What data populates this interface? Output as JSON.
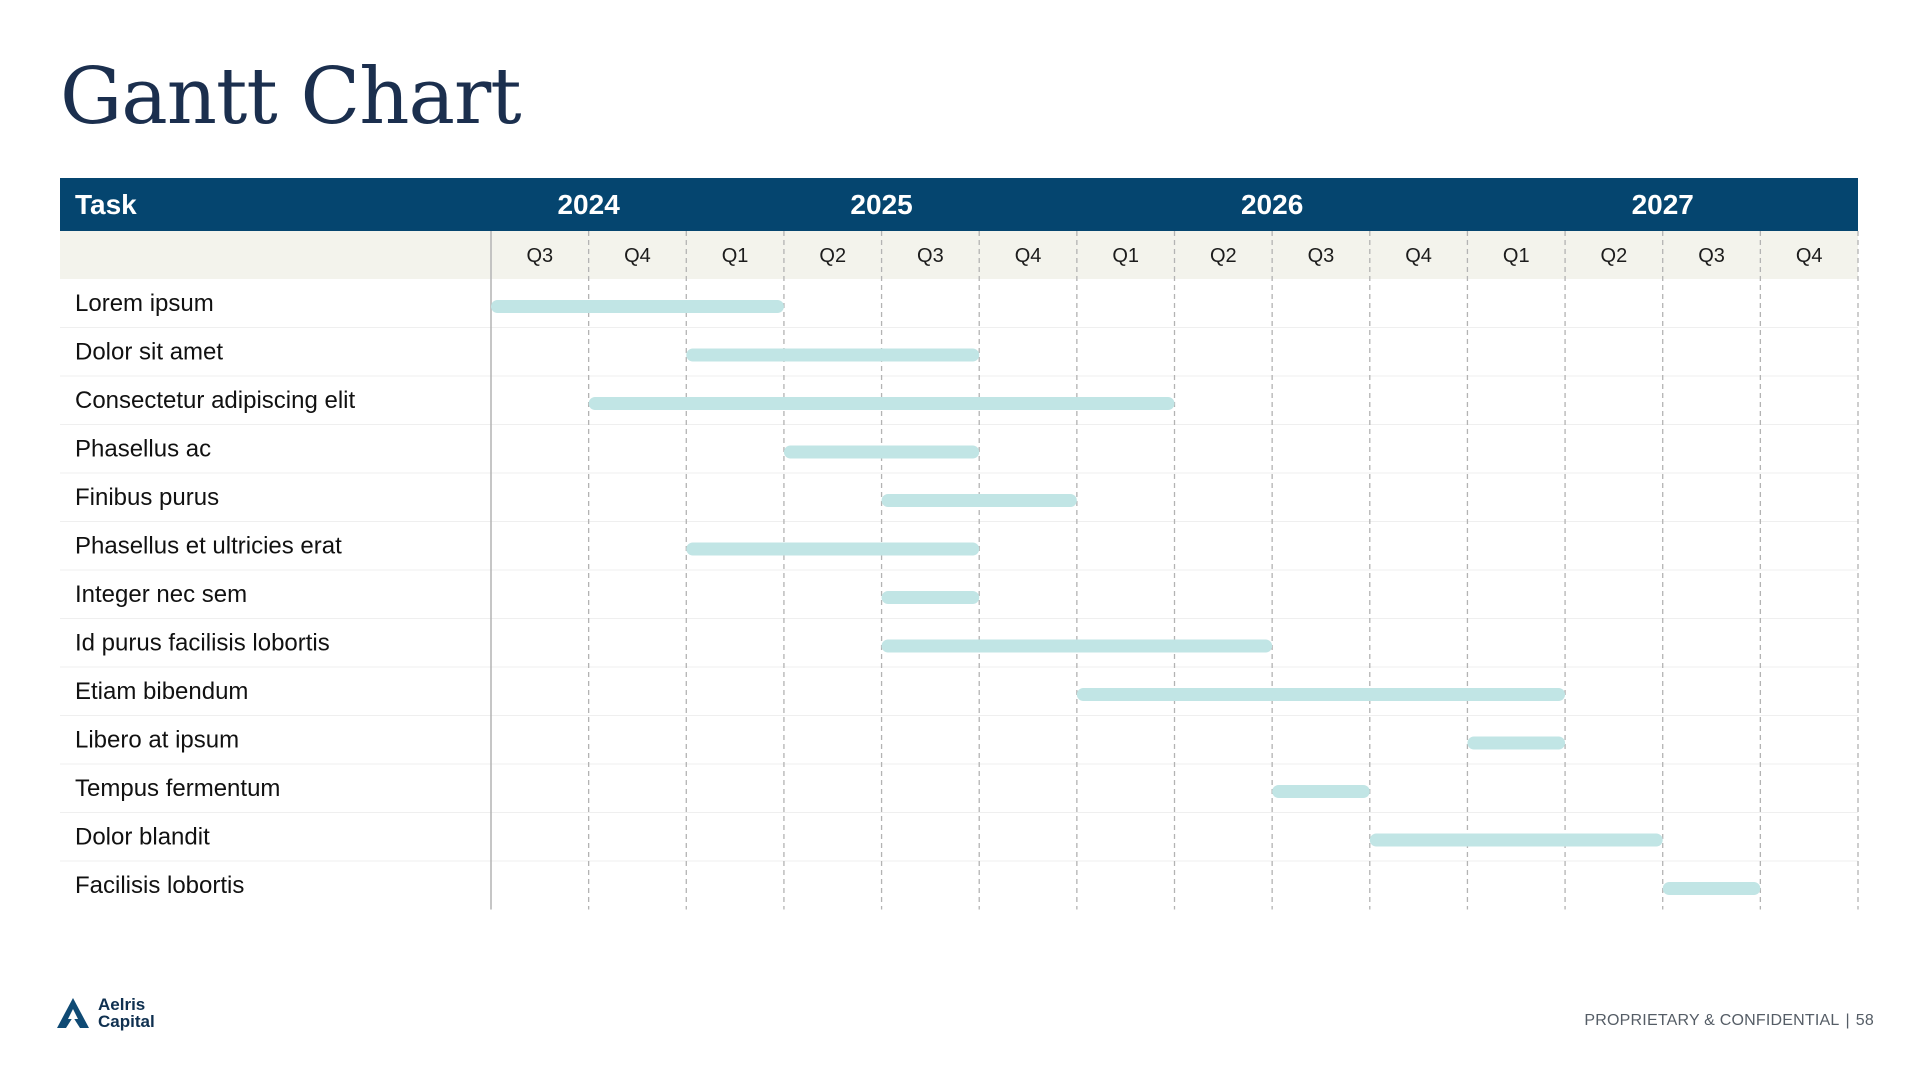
{
  "page": {
    "title": "Gantt Chart",
    "footer_text": "PROPRIETARY & CONFIDENTIAL",
    "footer_sep": "|",
    "page_number": "58",
    "logo_line1": "Aelris",
    "logo_line2": "Capital"
  },
  "colors": {
    "header_bg": "#05456f",
    "quarter_row_bg": "#f3f3ec",
    "bar": "#c1e5e5",
    "grid": "#b3b3b3",
    "title": "#1b2f4e"
  },
  "chart_data": {
    "type": "gantt",
    "task_header": "Task",
    "years": [
      {
        "label": "2024",
        "quarters": [
          "Q3",
          "Q4"
        ]
      },
      {
        "label": "2025",
        "quarters": [
          "Q1",
          "Q2",
          "Q3",
          "Q4"
        ]
      },
      {
        "label": "2026",
        "quarters": [
          "Q1",
          "Q2",
          "Q3",
          "Q4"
        ]
      },
      {
        "label": "2027",
        "quarters": [
          "Q1",
          "Q2",
          "Q3",
          "Q4"
        ]
      }
    ],
    "tasks": [
      {
        "name": "Lorem ipsum",
        "start": "2024-Q3",
        "end": "2025-Q2"
      },
      {
        "name": "Dolor sit amet",
        "start": "2025-Q1",
        "end": "2025-Q4"
      },
      {
        "name": "Consectetur adipiscing elit",
        "start": "2024-Q4",
        "end": "2026-Q2"
      },
      {
        "name": "Phasellus ac",
        "start": "2025-Q2",
        "end": "2025-Q4"
      },
      {
        "name": "Finibus purus",
        "start": "2025-Q3",
        "end": "2026-Q1"
      },
      {
        "name": "Phasellus et ultricies erat",
        "start": "2025-Q1",
        "end": "2025-Q4"
      },
      {
        "name": "Integer nec sem",
        "start": "2025-Q3",
        "end": "2025-Q4"
      },
      {
        "name": "Id purus facilisis lobortis",
        "start": "2025-Q3",
        "end": "2026-Q3"
      },
      {
        "name": "Etiam bibendum",
        "start": "2026-Q1",
        "end": "2027-Q2"
      },
      {
        "name": "Libero at ipsum",
        "start": "2027-Q1",
        "end": "2027-Q2"
      },
      {
        "name": "Tempus fermentum",
        "start": "2026-Q3",
        "end": "2026-Q4"
      },
      {
        "name": "Dolor blandit",
        "start": "2026-Q4",
        "end": "2027-Q3"
      },
      {
        "name": "Facilisis lobortis",
        "start": "2027-Q3",
        "end": "2027-Q4"
      }
    ]
  }
}
